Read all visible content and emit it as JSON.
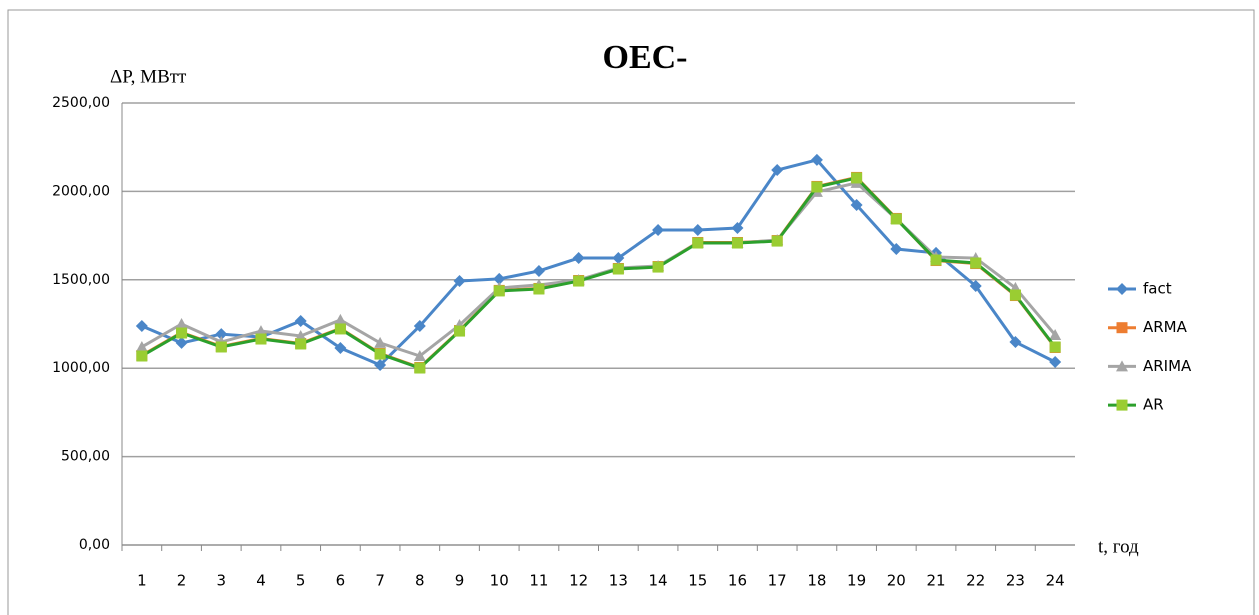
{
  "chart_data": {
    "type": "line",
    "title": "OEC-",
    "y_label": "ΔP, МВтт",
    "x_label": "t, год",
    "categories": [
      "1",
      "2",
      "3",
      "4",
      "5",
      "6",
      "7",
      "8",
      "9",
      "10",
      "11",
      "12",
      "13",
      "14",
      "15",
      "16",
      "17",
      "18",
      "19",
      "20",
      "21",
      "22",
      "23",
      "24"
    ],
    "series": [
      {
        "name": "fact",
        "color": "#4a86c8",
        "marker": "diamond",
        "marker_color": "#4a86c8",
        "values": [
          1239,
          1143,
          1193,
          1176,
          1267,
          1114,
          1018,
          1239,
          1493,
          1505,
          1550,
          1623,
          1623,
          1782,
          1782,
          1793,
          2121,
          2178,
          1923,
          1674,
          1652,
          1465,
          1148,
          1035
        ]
      },
      {
        "name": "ARMA",
        "color": "#ed7d31",
        "marker": "square",
        "marker_color": "#ed7d31",
        "values": [
          1072,
          1202,
          1123,
          1168,
          1140,
          1225,
          1083,
          1004,
          1213,
          1440,
          1451,
          1496,
          1564,
          1575,
          1711,
          1711,
          1722,
          2028,
          2079,
          1847,
          1609,
          1592,
          1411,
          1117
        ]
      },
      {
        "name": "ARIMA",
        "color": "#a5a5a5",
        "marker": "triangle",
        "marker_color": "#a5a5a5",
        "values": [
          1120,
          1250,
          1148,
          1210,
          1182,
          1273,
          1143,
          1069,
          1244,
          1454,
          1471,
          1499,
          1567,
          1578,
          1708,
          1708,
          1725,
          1997,
          2048,
          1844,
          1629,
          1623,
          1454,
          1188
        ]
      },
      {
        "name": "AR",
        "color": "#2ca02c",
        "marker": "square",
        "marker_color": "#9acd32",
        "values": [
          1069,
          1199,
          1120,
          1165,
          1137,
          1222,
          1080,
          1001,
          1210,
          1437,
          1448,
          1493,
          1561,
          1572,
          1708,
          1708,
          1719,
          2025,
          2076,
          1844,
          1612,
          1595,
          1414,
          1120
        ]
      }
    ],
    "ylim": [
      0,
      2500
    ],
    "yticks": [
      {
        "value": 0,
        "label": "0,00"
      },
      {
        "value": 500,
        "label": "500,00"
      },
      {
        "value": 1000,
        "label": "1000,00"
      },
      {
        "value": 1500,
        "label": "1500,00"
      },
      {
        "value": 2000,
        "label": "2000,00"
      },
      {
        "value": 2500,
        "label": "2500,00"
      }
    ],
    "grid": true,
    "legend": "right"
  }
}
